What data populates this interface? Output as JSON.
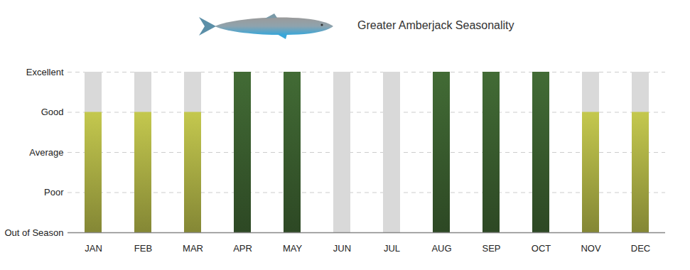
{
  "chart_data": {
    "type": "bar",
    "title": "Greater Amberjack Seasonality",
    "categories": [
      "JAN",
      "FEB",
      "MAR",
      "APR",
      "MAY",
      "JUN",
      "JUL",
      "AUG",
      "SEP",
      "OCT",
      "NOV",
      "DEC"
    ],
    "values": [
      3,
      3,
      3,
      4,
      4,
      0,
      0,
      4,
      4,
      4,
      3,
      3
    ],
    "colors": [
      "#c4c84e",
      "#c4c84e",
      "#c4c84e",
      "#426b35",
      "#426b35",
      "#d6d6d6",
      "#d6d6d6",
      "#426b35",
      "#426b35",
      "#426b35",
      "#c4c84e",
      "#c4c84e"
    ],
    "ylim": [
      0,
      4
    ],
    "yticks": [
      {
        "value": 0,
        "label": "Out of Season"
      },
      {
        "value": 1,
        "label": "Poor"
      },
      {
        "value": 2,
        "label": "Average"
      },
      {
        "value": 3,
        "label": "Good"
      },
      {
        "value": 4,
        "label": "Excellent"
      }
    ],
    "grid": true
  }
}
